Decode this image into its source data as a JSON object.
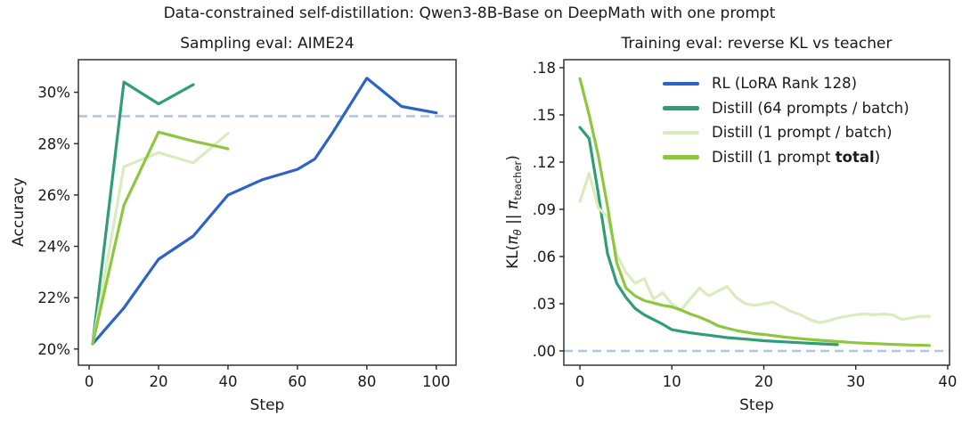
{
  "figure": {
    "title": "Data-constrained self-distillation: Qwen3-8B-Base on DeepMath with one prompt"
  },
  "colors": {
    "rl_blue": "#2b64c5",
    "distill_teal": "#2f9e77",
    "distill_light_green": "#d9ecbe",
    "distill_green": "#8ec63f",
    "reference_dashed": "#a9c7ef",
    "axis": "#262626",
    "text": "#1a1a1a"
  },
  "right_ylabel_parts": {
    "pre": "KL(",
    "pi1": "π",
    "sub1": "θ",
    "mid": " || ",
    "pi2": "π",
    "sub2": "teacher",
    "post": ")"
  },
  "chart_data": [
    {
      "type": "line",
      "title": "Sampling eval: AIME24",
      "xlabel": "Step",
      "ylabel": "Accuracy",
      "xlim": [
        -3.1,
        105.7
      ],
      "ylim": [
        19.37,
        31.27
      ],
      "xticks": [
        0,
        20,
        40,
        60,
        80,
        100
      ],
      "xtick_labels": [
        "0",
        "20",
        "40",
        "60",
        "80",
        "100"
      ],
      "yticks": [
        20,
        22,
        24,
        26,
        28,
        30
      ],
      "ytick_labels": [
        "20%",
        "22%",
        "24%",
        "26%",
        "28%",
        "30%"
      ],
      "grid": false,
      "reference_line": {
        "y": 29.07,
        "style": "dashed",
        "color_key": "reference_dashed"
      },
      "series": [
        {
          "name": "RL (LoRA Rank 128)",
          "color_key": "rl_blue",
          "x": [
            1,
            10,
            20,
            30,
            40,
            50,
            60,
            65,
            70,
            80,
            90,
            100
          ],
          "y": [
            20.2,
            21.6,
            23.5,
            24.4,
            26.0,
            26.6,
            27.0,
            27.4,
            28.4,
            30.55,
            29.45,
            29.2
          ]
        },
        {
          "name": "Distill (64 prompts / batch)",
          "color_key": "distill_teal",
          "x": [
            1,
            10,
            20,
            30
          ],
          "y": [
            20.2,
            30.4,
            29.55,
            30.3
          ]
        },
        {
          "name": "Distill (1 prompt / batch)",
          "color_key": "distill_light_green",
          "x": [
            1,
            10,
            20,
            30,
            40
          ],
          "y": [
            20.2,
            27.1,
            27.65,
            27.25,
            28.4
          ]
        },
        {
          "name": "Distill (1 prompt total)",
          "color_key": "distill_green",
          "x": [
            1,
            10,
            20,
            30,
            40
          ],
          "y": [
            20.2,
            25.6,
            28.45,
            28.1,
            27.8
          ]
        }
      ]
    },
    {
      "type": "line",
      "title": "Training eval: reverse KL vs teacher",
      "xlabel": "Step",
      "ylabel": "KL(pi_theta || pi_teacher)",
      "xlim": [
        -1.75,
        40.2
      ],
      "ylim": [
        -0.00906,
        0.18508
      ],
      "xticks": [
        0,
        10,
        20,
        30,
        40
      ],
      "xtick_labels": [
        "0",
        "10",
        "20",
        "30",
        "40"
      ],
      "yticks": [
        0.0,
        0.03,
        0.06,
        0.09,
        0.12,
        0.15,
        0.18
      ],
      "ytick_labels": [
        ".00",
        ".03",
        ".06",
        ".09",
        ".12",
        ".15",
        ".18"
      ],
      "grid": false,
      "reference_line": {
        "y": 0.0,
        "style": "dashed",
        "color_key": "reference_dashed"
      },
      "series": [
        {
          "name": "Distill (64 prompts / batch)",
          "color_key": "distill_teal",
          "x": [
            0,
            1,
            2,
            3,
            4,
            5,
            6,
            7,
            8,
            9,
            10,
            11,
            12,
            14,
            16,
            18,
            20,
            22,
            24,
            26,
            28
          ],
          "y": [
            0.142,
            0.135,
            0.1,
            0.062,
            0.043,
            0.034,
            0.027,
            0.023,
            0.02,
            0.017,
            0.0135,
            0.0125,
            0.0115,
            0.01,
            0.0085,
            0.0075,
            0.0065,
            0.0058,
            0.0052,
            0.0046,
            0.004
          ]
        },
        {
          "name": "Distill (1 prompt / batch)",
          "color_key": "distill_light_green",
          "x": [
            0,
            1,
            2,
            3,
            4,
            5,
            6,
            7,
            8,
            9,
            10,
            11,
            12,
            13,
            14,
            15,
            16,
            17,
            18,
            19,
            20,
            21,
            22,
            23,
            24,
            25,
            26,
            27,
            28,
            29,
            30,
            31,
            32,
            33,
            34,
            35,
            36,
            37,
            38
          ],
          "y": [
            0.095,
            0.113,
            0.091,
            0.085,
            0.061,
            0.05,
            0.043,
            0.046,
            0.033,
            0.037,
            0.03,
            0.026,
            0.033,
            0.04,
            0.035,
            0.038,
            0.041,
            0.034,
            0.03,
            0.029,
            0.03,
            0.031,
            0.028,
            0.025,
            0.023,
            0.02,
            0.018,
            0.019,
            0.021,
            0.022,
            0.023,
            0.0235,
            0.023,
            0.0235,
            0.023,
            0.02,
            0.021,
            0.022,
            0.022
          ]
        },
        {
          "name": "Distill (1 prompt total)",
          "color_key": "distill_green",
          "x": [
            0,
            1,
            2,
            3,
            4,
            5,
            6,
            7,
            8,
            9,
            10,
            11,
            12,
            13,
            14,
            15,
            16,
            17,
            18,
            19,
            20,
            22,
            24,
            26,
            28,
            30,
            32,
            34,
            36,
            38
          ],
          "y": [
            0.173,
            0.15,
            0.124,
            0.092,
            0.056,
            0.04,
            0.035,
            0.032,
            0.0305,
            0.029,
            0.028,
            0.026,
            0.0235,
            0.0215,
            0.019,
            0.016,
            0.0145,
            0.013,
            0.012,
            0.011,
            0.0105,
            0.009,
            0.0078,
            0.0068,
            0.006,
            0.0052,
            0.0047,
            0.0042,
            0.0038,
            0.0035
          ]
        }
      ]
    }
  ],
  "legend": {
    "entries": [
      {
        "pre": "RL (LoRA Rank 128)",
        "bold": "",
        "post": "",
        "color_key": "rl_blue"
      },
      {
        "pre": "Distill (64 prompts / batch)",
        "bold": "",
        "post": "",
        "color_key": "distill_teal"
      },
      {
        "pre": "Distill (1 prompt / batch)",
        "bold": "",
        "post": "",
        "color_key": "distill_light_green"
      },
      {
        "pre": "Distill (1 prompt ",
        "bold": "total",
        "post": ")",
        "color_key": "distill_green"
      }
    ]
  }
}
